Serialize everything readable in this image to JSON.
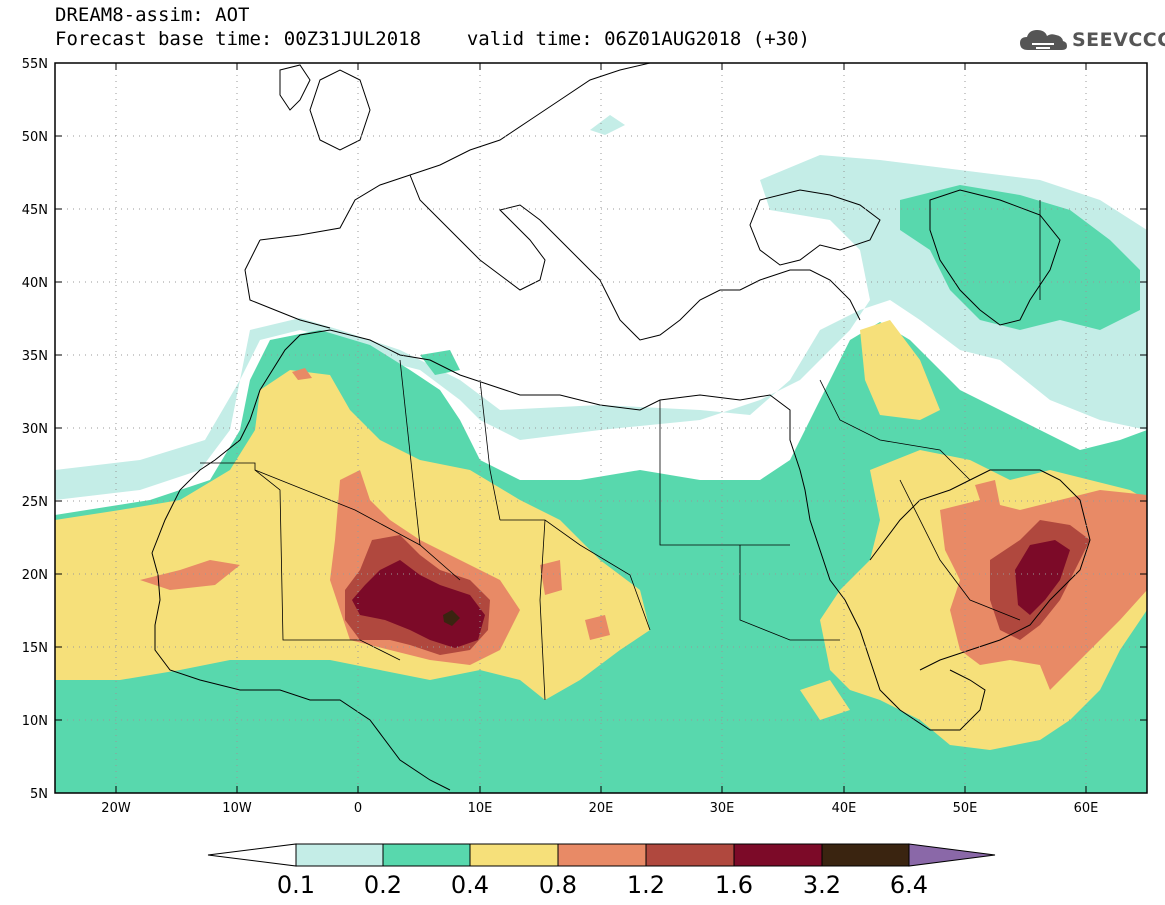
{
  "header": {
    "title": "DREAM8-assim: AOT",
    "base_time_label": "Forecast base time: 00Z31JUL2018",
    "valid_time_label": "valid time: 06Z01AUG2018 (+30)",
    "logo_text": "SEEVCCC"
  },
  "map": {
    "lat_labels": [
      "55N",
      "50N",
      "45N",
      "40N",
      "35N",
      "30N",
      "25N",
      "20N",
      "15N",
      "10N",
      "5N"
    ],
    "lon_labels": [
      "20W",
      "10W",
      "0",
      "10E",
      "20E",
      "30E",
      "40E",
      "50E",
      "60E"
    ],
    "extent": {
      "lon_min": -25,
      "lon_max": 65,
      "lat_min": 5,
      "lat_max": 55
    }
  },
  "colorbar": {
    "labels": [
      "0.1",
      "0.2",
      "0.4",
      "0.8",
      "1.2",
      "1.6",
      "3.2",
      "6.4"
    ],
    "colors": [
      "#c4ede7",
      "#58d8ad",
      "#f6e07a",
      "#e88a66",
      "#b0483e",
      "#7c0a28",
      "#3a2410",
      "#8a68a8"
    ]
  },
  "palette": {
    "c01": "#c4ede7",
    "c02": "#58d8ad",
    "c04": "#f6e07a",
    "c08": "#e88a66",
    "c12": "#b0483e",
    "c16": "#7c0a28",
    "c32": "#3a2410"
  }
}
